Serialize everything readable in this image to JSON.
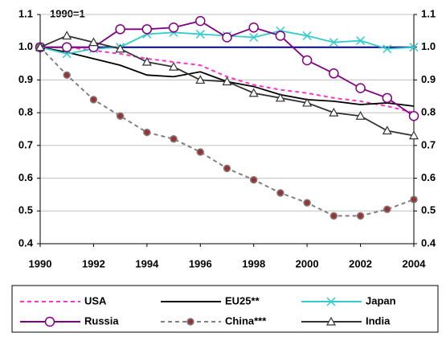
{
  "chart_data": {
    "type": "line",
    "annotation": "1990=1",
    "x": [
      1990,
      1991,
      1992,
      1993,
      1994,
      1995,
      1996,
      1997,
      1998,
      1999,
      2000,
      2001,
      2002,
      2003,
      2004
    ],
    "xlim": [
      1990,
      2004
    ],
    "xticks": [
      1990,
      1992,
      1994,
      1996,
      1998,
      2000,
      2002,
      2004
    ],
    "ylim": [
      0.4,
      1.1
    ],
    "yticks": [
      0.4,
      0.5,
      0.6,
      0.7,
      0.8,
      0.9,
      {
        "value": 1,
        "label": "1.0"
      },
      1.1
    ],
    "grid": true,
    "reference_line": 1,
    "reference_color": "#000080",
    "series": [
      {
        "name": "USA",
        "color": "#ff33cc",
        "dash": true,
        "marker": "none",
        "values": [
          1.0,
          1.0,
          0.99,
          0.98,
          0.965,
          0.955,
          0.945,
          0.91,
          0.885,
          0.87,
          0.86,
          0.845,
          0.835,
          0.82,
          0.8
        ]
      },
      {
        "name": "EU25**",
        "color": "#000000",
        "dash": false,
        "marker": "none",
        "values": [
          1.0,
          0.985,
          0.965,
          0.945,
          0.915,
          0.91,
          0.925,
          0.895,
          0.88,
          0.855,
          0.84,
          0.835,
          0.825,
          0.83,
          0.82
        ]
      },
      {
        "name": "Japan",
        "color": "#33cccc",
        "dash": false,
        "marker": "x",
        "values": [
          1.0,
          0.98,
          0.995,
          1.0,
          1.04,
          1.045,
          1.04,
          1.035,
          1.03,
          1.05,
          1.035,
          1.015,
          1.02,
          0.995,
          1.0
        ]
      },
      {
        "name": "Russia",
        "color": "#800080",
        "dash": false,
        "marker": "circle",
        "values": [
          1.0,
          1.0,
          1.0,
          1.055,
          1.055,
          1.06,
          1.08,
          1.03,
          1.06,
          1.035,
          0.96,
          0.92,
          0.875,
          0.845,
          0.79
        ]
      },
      {
        "name": "China***",
        "color": "#808080",
        "dash": true,
        "marker": "dot",
        "values": [
          1.0,
          0.915,
          0.84,
          0.79,
          0.74,
          0.72,
          0.68,
          0.63,
          0.595,
          0.555,
          0.525,
          0.485,
          0.485,
          0.505,
          0.535
        ]
      },
      {
        "name": "India",
        "color": "#333333",
        "dash": false,
        "marker": "triangle",
        "values": [
          1.0,
          1.035,
          1.015,
          0.995,
          0.955,
          0.94,
          0.9,
          0.895,
          0.86,
          0.845,
          0.83,
          0.8,
          0.79,
          0.745,
          0.73
        ]
      }
    ]
  }
}
